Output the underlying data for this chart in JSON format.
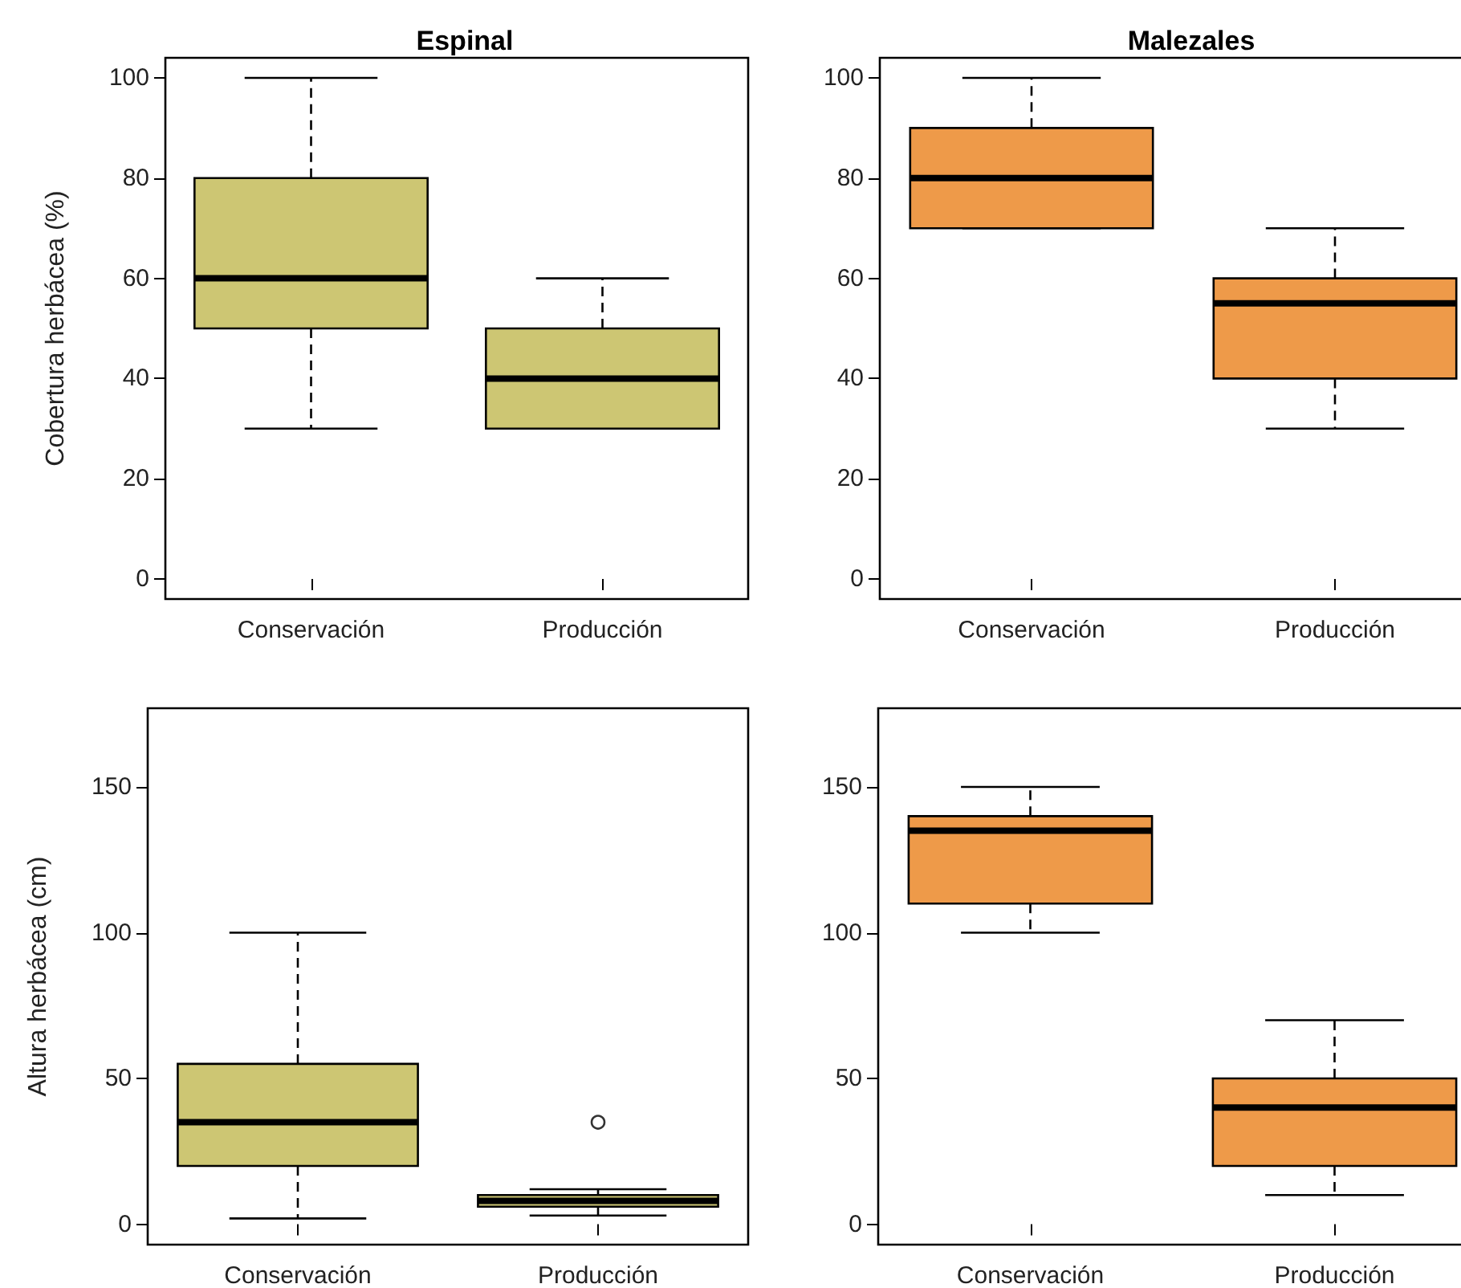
{
  "chart_data": [
    {
      "type": "box",
      "title": "Espinal",
      "ylabel": "Cobertura herbácea (%)",
      "categories": [
        "Conservación",
        "Producción"
      ],
      "ylim": [
        -4,
        104
      ],
      "yticks": [
        0,
        20,
        40,
        60,
        80,
        100
      ],
      "series": [
        {
          "color": "#cdc673",
          "boxes": [
            {
              "low": 30,
              "q1": 50,
              "median": 60,
              "q3": 80,
              "high": 100
            },
            {
              "low": 30,
              "q1": 30,
              "median": 40,
              "q3": 50,
              "high": 60
            }
          ]
        }
      ]
    },
    {
      "type": "box",
      "title": "Malezales",
      "categories": [
        "Conservación",
        "Producción"
      ],
      "ylim": [
        -4,
        104
      ],
      "yticks": [
        0,
        20,
        40,
        60,
        80,
        100
      ],
      "series": [
        {
          "color": "#ee9a49",
          "boxes": [
            {
              "low": 70,
              "q1": 70,
              "median": 80,
              "q3": 90,
              "high": 100
            },
            {
              "low": 30,
              "q1": 40,
              "median": 55,
              "q3": 60,
              "high": 70
            }
          ]
        }
      ]
    },
    {
      "type": "box",
      "ylabel": "Altura herbácea (cm)",
      "categories": [
        "Conservación",
        "Producción"
      ],
      "ylim": [
        -7,
        177
      ],
      "yticks": [
        0,
        50,
        100,
        150
      ],
      "series": [
        {
          "color": "#cdc673",
          "boxes": [
            {
              "low": 2,
              "q1": 20,
              "median": 35,
              "q3": 55,
              "high": 100
            },
            {
              "low": 3,
              "q1": 6,
              "median": 8,
              "q3": 10,
              "high": 12,
              "outliers": [
                35
              ]
            }
          ]
        }
      ]
    },
    {
      "type": "box",
      "categories": [
        "Conservación",
        "Producción"
      ],
      "ylim": [
        -7,
        177
      ],
      "yticks": [
        0,
        50,
        100,
        150
      ],
      "series": [
        {
          "color": "#ee9a49",
          "boxes": [
            {
              "low": 100,
              "q1": 110,
              "median": 135,
              "q3": 140,
              "high": 150
            },
            {
              "low": 10,
              "q1": 20,
              "median": 40,
              "q3": 50,
              "high": 70
            }
          ]
        }
      ]
    }
  ]
}
